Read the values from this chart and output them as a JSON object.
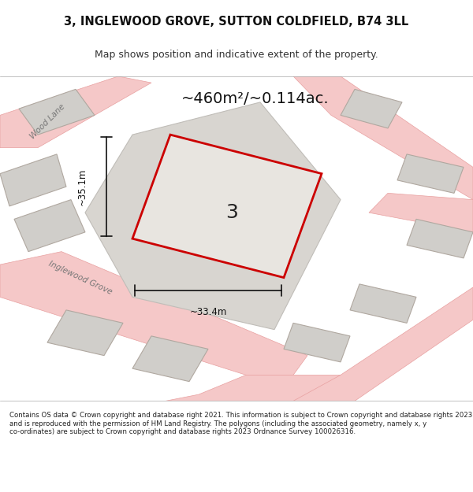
{
  "title_line1": "3, INGLEWOOD GROVE, SUTTON COLDFIELD, B74 3LL",
  "title_line2": "Map shows position and indicative extent of the property.",
  "area_text": "~460m²/~0.114ac.",
  "label_number": "3",
  "dim_vertical": "~35.1m",
  "dim_horizontal": "~33.4m",
  "bg_color": "#f0eeea",
  "map_bg": "#f0eeea",
  "road_color": "#f5c8c8",
  "road_stroke": "#e8a0a0",
  "building_fill": "#d8d8d8",
  "building_stroke": "#b0b0b0",
  "plot_fill": "#e8e4e0",
  "plot_stroke": "#cc0000",
  "footer_text": "Contains OS data © Crown copyright and database right 2021. This information is subject to Crown copyright and database rights 2023 and is reproduced with the permission of HM Land Registry. The polygons (including the associated geometry, namely x, y co-ordinates) are subject to Crown copyright and database rights 2023 Ordnance Survey 100026316.",
  "road_label1": "Wood Lane",
  "road_label2": "Inglewood Grove",
  "white_bg": "#ffffff"
}
